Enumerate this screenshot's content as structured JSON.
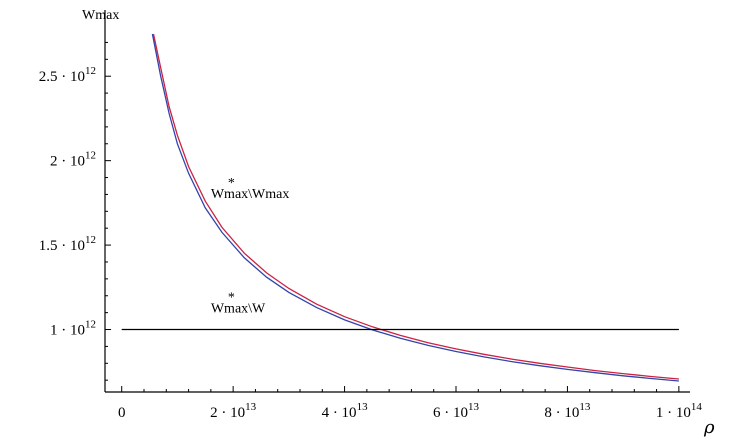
{
  "chart_data": {
    "type": "line",
    "ylabel": "Wmax",
    "xlabel": "ρ",
    "xlim": [
      -3000000000000.0,
      102000000000000.0
    ],
    "ylim": [
      630000000000.0,
      2750000000000.0
    ],
    "x_ticks": [
      {
        "value": 0,
        "base": "0",
        "exp": ""
      },
      {
        "value": 20000000000000.0,
        "base": "2 · 10",
        "exp": "13"
      },
      {
        "value": 40000000000000.0,
        "base": "4 · 10",
        "exp": "13"
      },
      {
        "value": 60000000000000.0,
        "base": "6 · 10",
        "exp": "13"
      },
      {
        "value": 80000000000000.0,
        "base": "8 · 10",
        "exp": "13"
      },
      {
        "value": 100000000000000.0,
        "base": "1 · 10",
        "exp": "14"
      }
    ],
    "y_ticks": [
      {
        "value": 1000000000000.0,
        "base": "1 · 10",
        "exp": "12"
      },
      {
        "value": 1500000000000.0,
        "base": "1.5 · 10",
        "exp": "12"
      },
      {
        "value": 2000000000000.0,
        "base": "2 · 10",
        "exp": "12"
      },
      {
        "value": 2500000000000.0,
        "base": "2.5 · 10",
        "exp": "12"
      }
    ],
    "series": [
      {
        "color": "#cc2244",
        "x": [
          5700000000000.0,
          7000000000000.0,
          8500000000000.0,
          10000000000000.0,
          12000000000000.0,
          15000000000000.0,
          18000000000000.0,
          22000000000000.0,
          26000000000000.0,
          30000000000000.0,
          35000000000000.0,
          40000000000000.0,
          45000000000000.0,
          50000000000000.0,
          55000000000000.0,
          60000000000000.0,
          65000000000000.0,
          70000000000000.0,
          75000000000000.0,
          80000000000000.0,
          85000000000000.0,
          90000000000000.0,
          95000000000000.0,
          100000000000000.0
        ],
        "y": [
          2750000000000.0,
          2550000000000.0,
          2320000000000.0,
          2150000000000.0,
          1965000000000.0,
          1760000000000.0,
          1605000000000.0,
          1452000000000.0,
          1335000000000.0,
          1243000000000.0,
          1150000000000.0,
          1076000000000.0,
          1016000000000.0,
          965000000000.0,
          922000000000.0,
          885000000000.0,
          853000000000.0,
          825000000000.0,
          800000000000.0,
          778000000000.0,
          757000000000.0,
          739000000000.0,
          722000000000.0,
          707000000000.0
        ]
      },
      {
        "color": "#3344aa",
        "x": [
          5500000000000.0,
          7000000000000.0,
          8500000000000.0,
          10000000000000.0,
          12000000000000.0,
          15000000000000.0,
          18000000000000.0,
          22000000000000.0,
          26000000000000.0,
          30000000000000.0,
          35000000000000.0,
          40000000000000.0,
          45000000000000.0,
          50000000000000.0,
          55000000000000.0,
          60000000000000.0,
          65000000000000.0,
          70000000000000.0,
          75000000000000.0,
          80000000000000.0,
          85000000000000.0,
          90000000000000.0,
          95000000000000.0,
          100000000000000.0
        ],
        "y": [
          2750000000000.0,
          2500000000000.0,
          2280000000000.0,
          2100000000000.0,
          1925000000000.0,
          1720000000000.0,
          1575000000000.0,
          1425000000000.0,
          1310000000000.0,
          1220000000000.0,
          1130000000000.0,
          1057000000000.0,
          998000000000.0,
          948000000000.0,
          906000000000.0,
          870000000000.0,
          838000000000.0,
          810000000000.0,
          786000000000.0,
          764000000000.0,
          744000000000.0,
          726000000000.0,
          710000000000.0,
          695000000000.0
        ]
      },
      {
        "color": "#000000",
        "x": [
          0,
          100000000000000.0
        ],
        "y": [
          1000000000000.0,
          1000000000000.0
        ]
      }
    ],
    "annotations": [
      {
        "text": "Wmax\\Wmax",
        "star": "*",
        "x": 16000000000000.0,
        "y": 1780000000000.0
      },
      {
        "text": "Wmax\\W",
        "star": "*",
        "x": 16000000000000.0,
        "y": 1100000000000.0
      }
    ],
    "grid": false
  }
}
